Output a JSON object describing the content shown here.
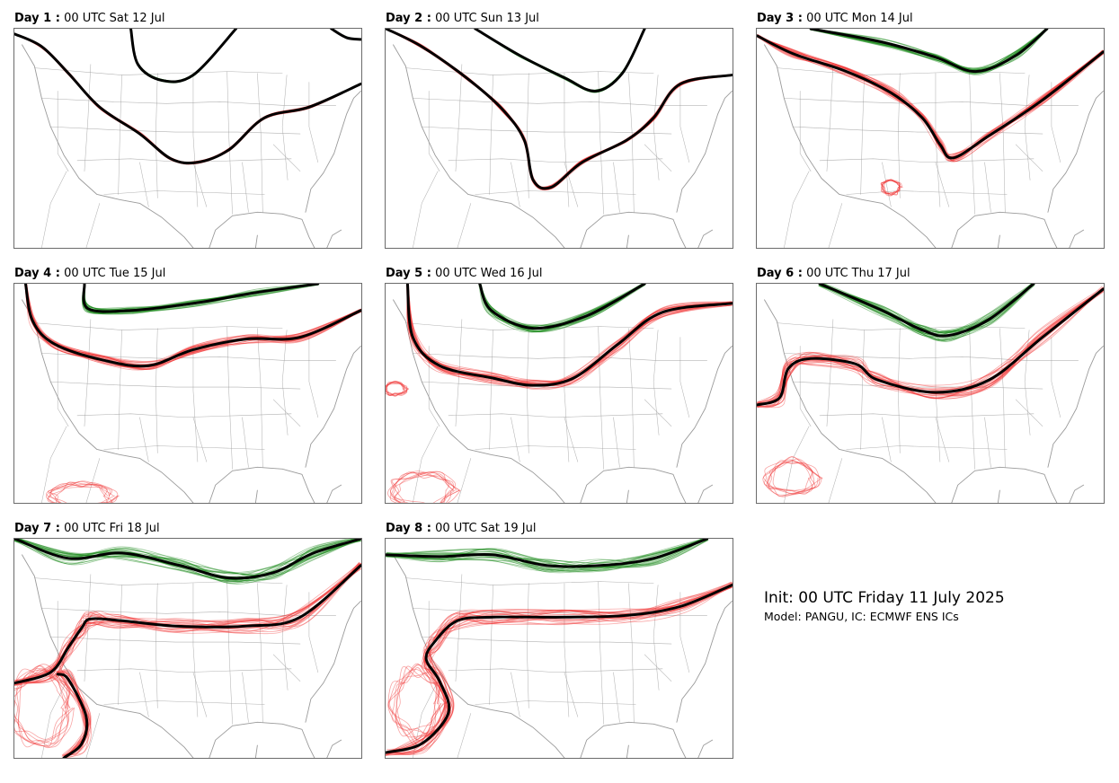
{
  "panels": [
    {
      "day": "Day 1 :",
      "time": "00 UTC Sat 12 Jul"
    },
    {
      "day": "Day 2 :",
      "time": "00 UTC Sun 13 Jul"
    },
    {
      "day": "Day 3 :",
      "time": "00 UTC Mon 14 Jul"
    },
    {
      "day": "Day 4 :",
      "time": "00 UTC Tue 15 Jul"
    },
    {
      "day": "Day 5 :",
      "time": "00 UTC Wed 16 Jul"
    },
    {
      "day": "Day 6 :",
      "time": "00 UTC Thu 17 Jul"
    },
    {
      "day": "Day 7 :",
      "time": "00 UTC Fri 18 Jul"
    },
    {
      "day": "Day 8 :",
      "time": "00 UTC Sat 19 Jul"
    }
  ],
  "info": {
    "title": "Init: 00 UTC Friday 11 July 2025",
    "subtitle": "Model: PANGU, IC: ECMWF ENS ICs"
  },
  "colors": {
    "green_members": "#1e8c1e",
    "red_members": "#f03232",
    "mean_contour": "#000000",
    "map_lines": "#9a9a9a",
    "frame": "#6b6b6b"
  }
}
